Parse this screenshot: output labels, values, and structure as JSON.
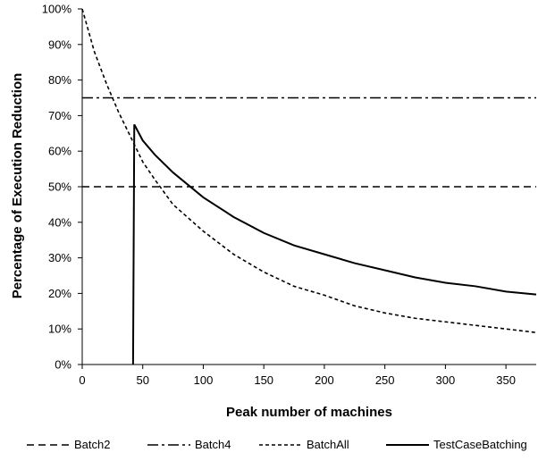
{
  "chart_data": {
    "type": "line",
    "title": "",
    "xlabel": "Peak number of machines",
    "ylabel": "Percentage of Execution Reduction",
    "xlim": [
      0,
      375
    ],
    "ylim": [
      0,
      100
    ],
    "x_ticks": [
      0,
      50,
      100,
      150,
      200,
      250,
      300,
      350
    ],
    "y_ticks": [
      0,
      10,
      20,
      30,
      40,
      50,
      60,
      70,
      80,
      90,
      100
    ],
    "y_tick_labels": [
      "0%",
      "10%",
      "20%",
      "30%",
      "40%",
      "50%",
      "60%",
      "70%",
      "80%",
      "90%",
      "100%"
    ],
    "grid": false,
    "legend_position": "bottom",
    "series": [
      {
        "name": "Batch2",
        "style": "dashed",
        "x": [
          0,
          375
        ],
        "y": [
          50,
          50
        ]
      },
      {
        "name": "Batch4",
        "style": "dash-dot",
        "x": [
          0,
          375
        ],
        "y": [
          75,
          75
        ]
      },
      {
        "name": "BatchAll",
        "style": "short-dash",
        "x": [
          0,
          10,
          20,
          30,
          40,
          50,
          60,
          75,
          100,
          125,
          150,
          175,
          200,
          225,
          250,
          275,
          300,
          325,
          350,
          375
        ],
        "y": [
          100,
          88,
          79,
          71,
          64,
          57,
          52,
          45,
          37.5,
          31,
          26,
          22,
          19.5,
          16.5,
          14.5,
          13,
          12,
          11,
          10,
          9
        ]
      },
      {
        "name": "TestCaseBatching",
        "style": "solid",
        "x": [
          42,
          43,
          50,
          60,
          75,
          100,
          125,
          150,
          175,
          200,
          225,
          250,
          275,
          300,
          325,
          350,
          375
        ],
        "y": [
          0,
          67.5,
          63,
          59,
          54,
          47,
          41.5,
          37,
          33.5,
          31,
          28.5,
          26.5,
          24.5,
          23,
          22,
          20.5,
          19.7
        ]
      }
    ]
  }
}
